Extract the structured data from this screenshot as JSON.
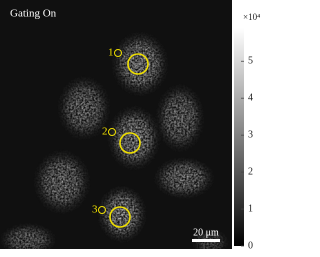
{
  "image": {
    "label": "Gating On",
    "rois": [
      "1",
      "2",
      "3"
    ],
    "scale_bar": "20 μm"
  },
  "colorbar": {
    "multiplier": "×10⁴",
    "lim": [
      0,
      5.9
    ],
    "ticks": [
      0,
      1,
      2,
      3,
      4,
      5
    ]
  }
}
